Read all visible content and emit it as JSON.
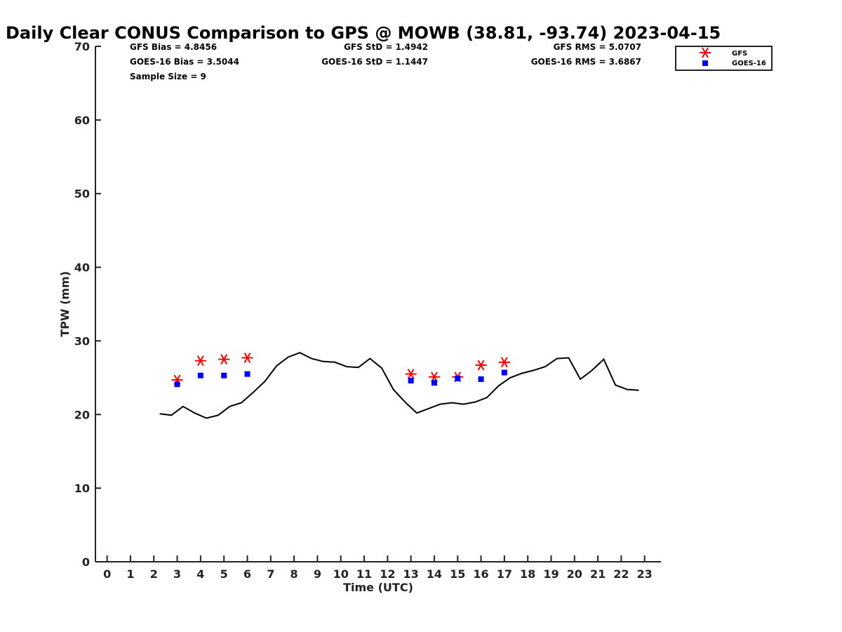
{
  "chart_data": {
    "type": "line",
    "title": "Daily Clear CONUS Comparison to GPS @ MOWB (38.81, -93.74) 2023-04-15",
    "xlabel": "Time (UTC)",
    "ylabel": "TPW (mm)",
    "xlim": [
      -0.5,
      23.7
    ],
    "ylim": [
      0,
      70
    ],
    "x_ticks": [
      0,
      1,
      2,
      3,
      4,
      5,
      6,
      7,
      8,
      9,
      10,
      11,
      12,
      13,
      14,
      15,
      16,
      17,
      18,
      19,
      20,
      21,
      22,
      23
    ],
    "y_ticks": [
      0,
      10,
      20,
      30,
      40,
      50,
      60,
      70
    ],
    "grid": false,
    "legend_position": "top-right",
    "stats": {
      "gfs_bias": "GFS Bias = 4.8456",
      "goes_bias": "GOES-16 Bias = 3.5044",
      "sample_size": "Sample Size = 9",
      "gfs_std": "GFS StD = 1.4942",
      "goes_std": "GOES-16 StD = 1.1447",
      "gfs_rms": "GFS RMS = 5.0707",
      "goes_rms": "GOES-16 RMS = 3.6867"
    },
    "series": [
      {
        "kind": "line",
        "color": "#000000",
        "x": [
          2.25,
          2.75,
          3.25,
          3.75,
          4.25,
          4.75,
          5.25,
          5.75,
          6.25,
          6.75,
          7.25,
          7.75,
          8.25,
          8.75,
          9.25,
          9.75,
          10.25,
          10.75,
          11.25,
          11.75,
          12.25,
          12.75,
          13.25,
          13.75,
          14.25,
          14.75,
          15.25,
          15.75,
          16.25,
          16.75,
          17.25,
          17.75,
          18.25,
          18.75,
          19.25,
          19.75,
          20.25,
          20.75,
          21.25,
          21.75,
          22.25,
          22.75
        ],
        "y": [
          20.1,
          19.9,
          21.1,
          20.2,
          19.5,
          19.9,
          21.1,
          21.6,
          23.0,
          24.5,
          26.6,
          27.8,
          28.4,
          27.6,
          27.2,
          27.1,
          26.5,
          26.4,
          27.6,
          26.3,
          23.4,
          21.7,
          20.2,
          20.8,
          21.4,
          21.6,
          21.4,
          21.7,
          22.3,
          23.9,
          25.0,
          25.6,
          26.0,
          26.5,
          27.6,
          27.7,
          24.8,
          26.0,
          27.5,
          24.0,
          23.4,
          23.3
        ]
      },
      {
        "name": "GFS",
        "kind": "scatter",
        "marker": "asterisk",
        "color": "#ff0000",
        "x": [
          3,
          4,
          5,
          6,
          13,
          14,
          15,
          16,
          17
        ],
        "y": [
          24.7,
          27.3,
          27.5,
          27.7,
          25.5,
          25.1,
          25.1,
          26.7,
          27.1
        ]
      },
      {
        "name": "GOES-16",
        "kind": "scatter",
        "marker": "square",
        "color": "#0000ff",
        "x": [
          3,
          4,
          5,
          6,
          13,
          14,
          15,
          16,
          17
        ],
        "y": [
          24.1,
          25.3,
          25.3,
          25.5,
          24.6,
          24.3,
          24.9,
          24.8,
          25.7
        ]
      }
    ]
  }
}
